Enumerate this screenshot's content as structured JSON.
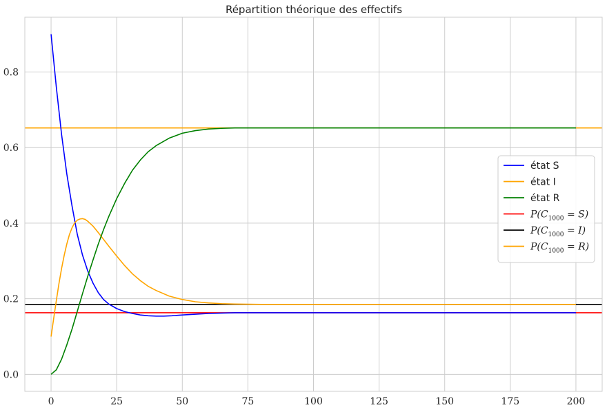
{
  "chart_data": {
    "type": "line",
    "title": "Répartition théorique des effectifs",
    "xlabel": "",
    "ylabel": "",
    "xlim": [
      -10,
      210
    ],
    "ylim": [
      -0.045,
      0.945
    ],
    "xticks": [
      0,
      25,
      50,
      75,
      100,
      125,
      150,
      175,
      200
    ],
    "yticks": [
      0.0,
      0.2,
      0.4,
      0.6,
      0.8
    ],
    "xtick_labels": [
      "0",
      "25",
      "50",
      "75",
      "100",
      "125",
      "150",
      "175",
      "200"
    ],
    "ytick_labels": [
      "0.0",
      "0.2",
      "0.4",
      "0.6",
      "0.8"
    ],
    "grid": true,
    "legend_position": "center-right",
    "series": [
      {
        "name": "état S",
        "color": "#0000ff",
        "x": [
          0,
          2,
          4,
          6,
          8,
          10,
          12,
          14,
          16,
          18,
          20,
          22,
          25,
          28,
          31,
          34,
          37,
          40,
          43,
          46,
          50,
          55,
          60,
          65,
          70,
          80,
          100,
          150,
          200
        ],
        "y": [
          0.9,
          0.76,
          0.635,
          0.53,
          0.445,
          0.37,
          0.315,
          0.273,
          0.241,
          0.216,
          0.198,
          0.186,
          0.174,
          0.166,
          0.161,
          0.157,
          0.155,
          0.154,
          0.154,
          0.155,
          0.157,
          0.159,
          0.161,
          0.162,
          0.163,
          0.163,
          0.163,
          0.163,
          0.163
        ]
      },
      {
        "name": "état I",
        "color": "#ffa500",
        "x": [
          0,
          1,
          2,
          3,
          4,
          5,
          6,
          7,
          8,
          9,
          10,
          11,
          12,
          13,
          14,
          16,
          18,
          20,
          22,
          25,
          28,
          31,
          34,
          37,
          40,
          45,
          50,
          55,
          60,
          65,
          70,
          80,
          100,
          150,
          200
        ],
        "y": [
          0.1,
          0.148,
          0.195,
          0.24,
          0.28,
          0.315,
          0.345,
          0.37,
          0.388,
          0.401,
          0.408,
          0.411,
          0.412,
          0.41,
          0.405,
          0.392,
          0.375,
          0.357,
          0.339,
          0.313,
          0.288,
          0.266,
          0.248,
          0.233,
          0.222,
          0.207,
          0.198,
          0.192,
          0.189,
          0.187,
          0.186,
          0.185,
          0.185,
          0.185,
          0.185
        ]
      },
      {
        "name": "état R",
        "color": "#008000",
        "x": [
          0,
          2,
          4,
          6,
          8,
          10,
          12,
          14,
          16,
          18,
          20,
          22,
          25,
          28,
          31,
          34,
          37,
          40,
          45,
          50,
          55,
          60,
          65,
          70,
          75,
          100,
          150,
          200
        ],
        "y": [
          0.0,
          0.012,
          0.04,
          0.078,
          0.12,
          0.167,
          0.214,
          0.26,
          0.303,
          0.345,
          0.383,
          0.418,
          0.465,
          0.505,
          0.54,
          0.567,
          0.589,
          0.605,
          0.625,
          0.638,
          0.645,
          0.649,
          0.651,
          0.652,
          0.652,
          0.652,
          0.652,
          0.652
        ]
      }
    ],
    "hlines": [
      {
        "name": "P(C_1000 = S)",
        "color": "#ff0000",
        "y": 0.163
      },
      {
        "name": "P(C_1000 = I)",
        "color": "#000000",
        "y": 0.185
      },
      {
        "name": "P(C_1000 = R)",
        "color": "#ffa500",
        "y": 0.652
      }
    ],
    "legend": [
      {
        "label": "état S",
        "color": "#0000ff",
        "math": false
      },
      {
        "label": "état I",
        "color": "#ffa500",
        "math": false
      },
      {
        "label": "état R",
        "color": "#008000",
        "math": false
      },
      {
        "label_pre": "P(C",
        "label_sub": "1000",
        "label_post": " = S)",
        "color": "#ff0000",
        "math": true
      },
      {
        "label_pre": "P(C",
        "label_sub": "1000",
        "label_post": " = I)",
        "color": "#000000",
        "math": true
      },
      {
        "label_pre": "P(C",
        "label_sub": "1000",
        "label_post": " = R)",
        "color": "#ffa500",
        "math": true
      }
    ]
  }
}
